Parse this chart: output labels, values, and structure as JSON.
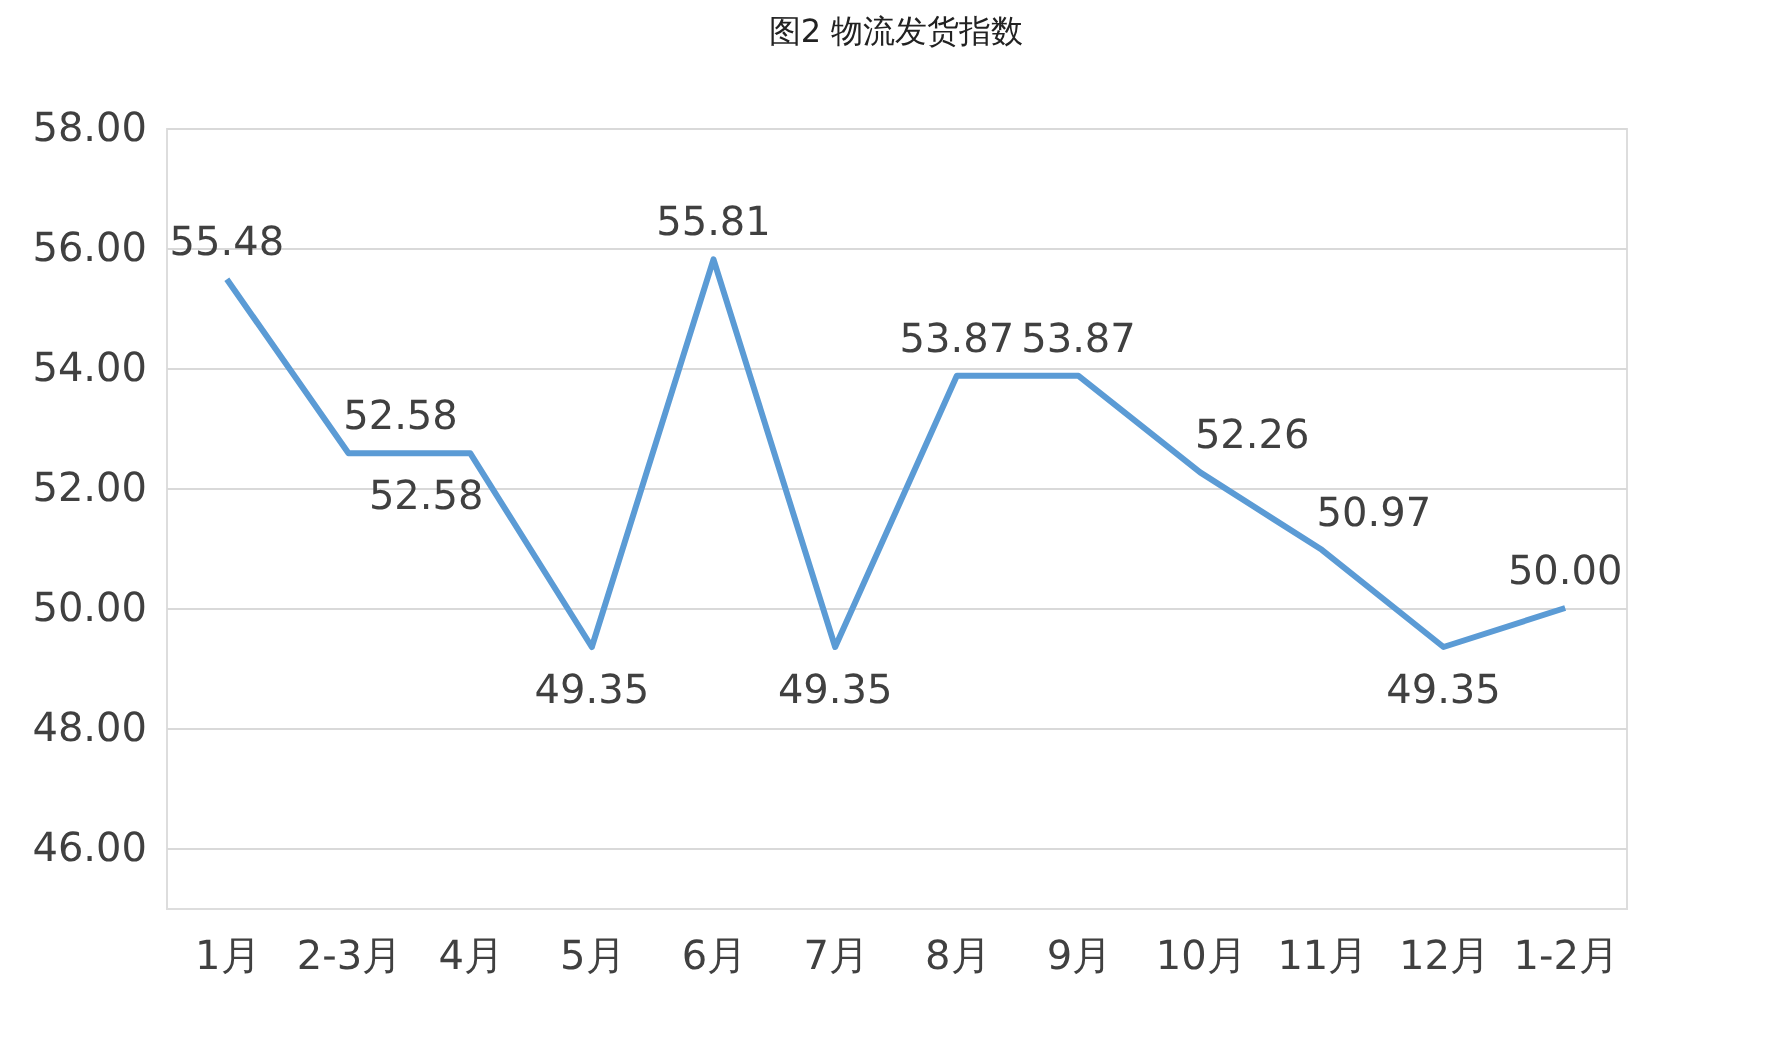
{
  "chart_data": {
    "type": "line",
    "title": "图2 物流发货指数",
    "categories": [
      "1月",
      "2-3月",
      "4月",
      "5月",
      "6月",
      "7月",
      "8月",
      "9月",
      "10月",
      "11月",
      "12月",
      "1-2月"
    ],
    "series": [
      {
        "color": "#5b9bd5",
        "values": [
          55.48,
          52.58,
          52.58,
          49.35,
          55.81,
          49.35,
          53.87,
          53.87,
          52.26,
          50.97,
          49.35,
          50.0
        ],
        "value_labels": [
          "55.48",
          "52.58",
          "52.58",
          "49.35",
          "55.81",
          "49.35",
          "53.87",
          "53.87",
          "52.26",
          "50.97",
          "49.35",
          "50.00"
        ]
      }
    ],
    "ylim": [
      45,
      58
    ],
    "yticks": [
      {
        "value": 46,
        "label": "46.00"
      },
      {
        "value": 48,
        "label": "48.00"
      },
      {
        "value": 50,
        "label": "50.00"
      },
      {
        "value": 52,
        "label": "52.00"
      },
      {
        "value": 54,
        "label": "54.00"
      },
      {
        "value": 56,
        "label": "56.00"
      },
      {
        "value": 58,
        "label": "58.00"
      }
    ],
    "grid": "y",
    "legend": false,
    "marker": "none",
    "line_style": "solid"
  }
}
